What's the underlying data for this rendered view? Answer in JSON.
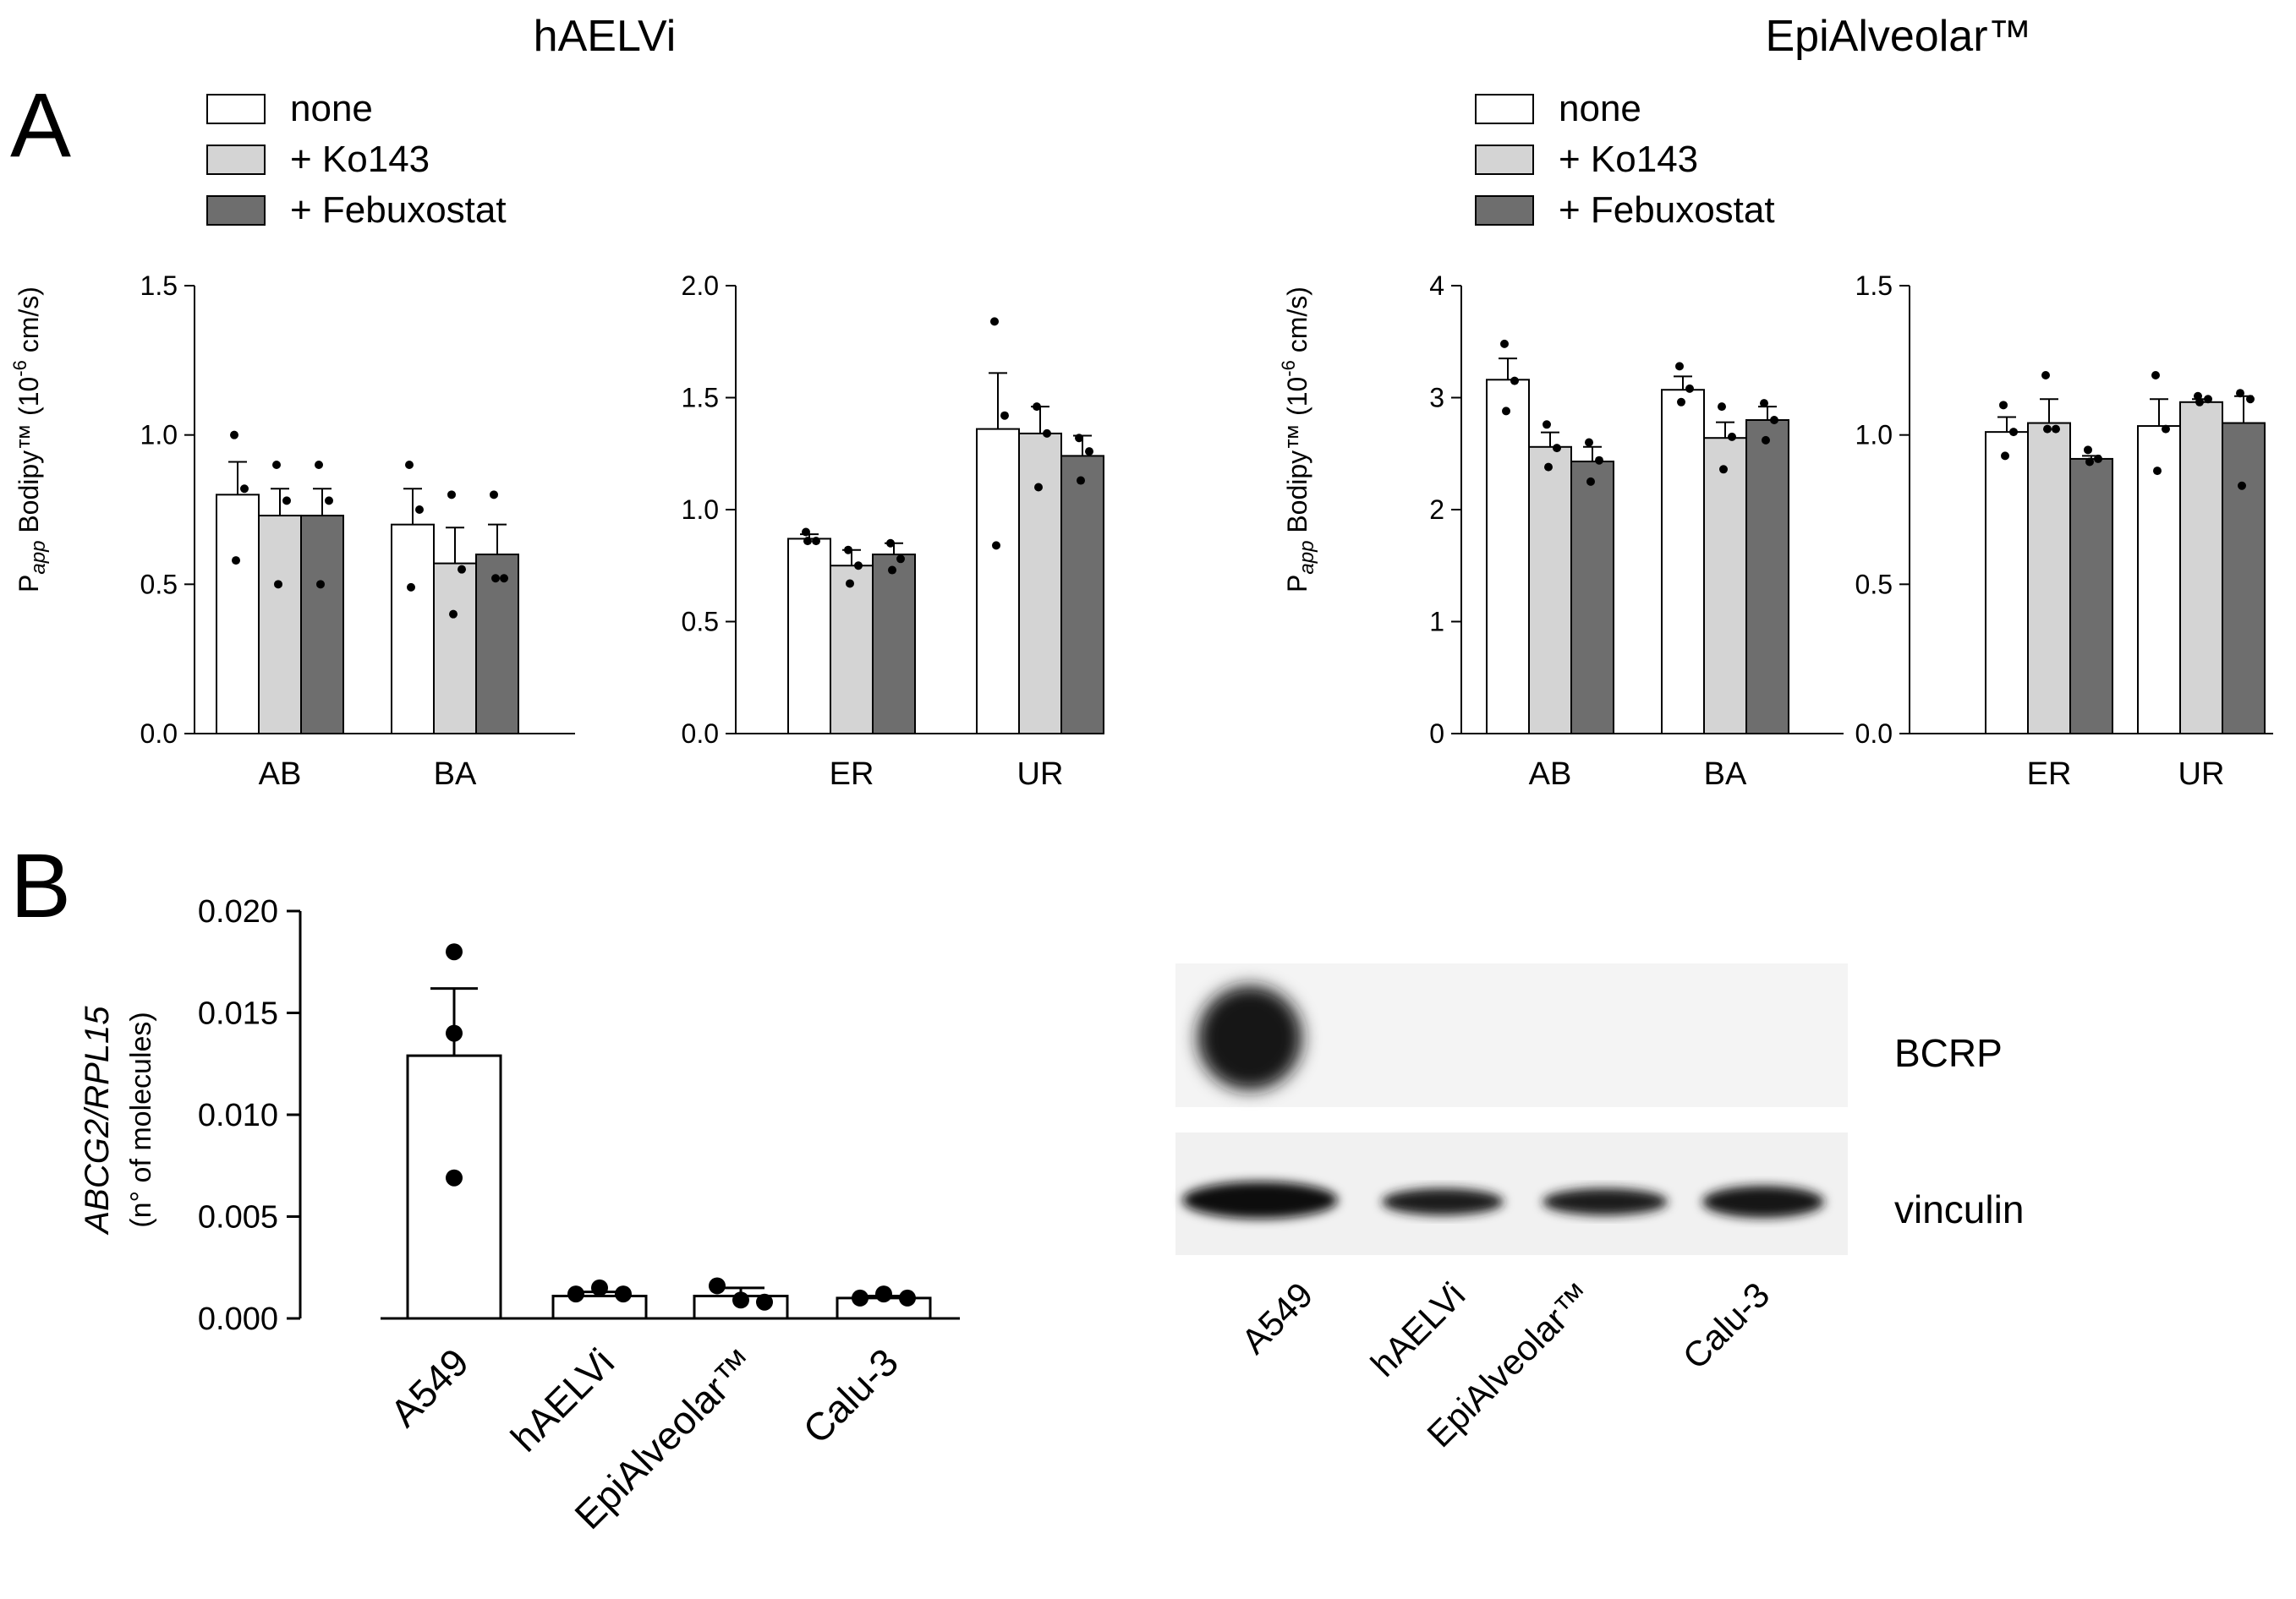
{
  "titles": {
    "left": "hAELVi",
    "right": "EpiAlveolar™"
  },
  "panel_labels": {
    "a": "A",
    "b": "B"
  },
  "legend": [
    {
      "label": "none",
      "color": "#ffffff"
    },
    {
      "label": "+ Ko143",
      "color": "#d4d4d4"
    },
    {
      "label": "+ Febuxostat",
      "color": "#6e6e6e"
    }
  ],
  "papp_label": {
    "main": "P",
    "sub": "app",
    "rest": " Bodipy™ ",
    "unit_a": "(10",
    "unit_exp": "-6",
    "unit_b": " cm/s)"
  },
  "ylabel_b": {
    "italic": "ABCG2/RPL15",
    "second": "(n° of molecules)"
  },
  "western_blot": {
    "bands": [
      "BCRP",
      "vinculin"
    ],
    "lanes": [
      "A549",
      "hAELVi",
      "EpiAlveolar™",
      "Calu-3"
    ]
  },
  "chart_data": [
    {
      "type": "bar",
      "panel": "A",
      "group_title": "hAELVi",
      "categories": [
        "AB",
        "BA"
      ],
      "ylim": [
        0,
        1.5
      ],
      "yticks": [
        "0.0",
        "0.5",
        "1.0",
        "1.5"
      ],
      "series": [
        {
          "name": "none",
          "values": [
            0.8,
            0.7
          ],
          "errors": [
            0.11,
            0.12
          ],
          "points": [
            [
              1.0,
              0.82,
              0.58
            ],
            [
              0.9,
              0.75,
              0.49
            ]
          ]
        },
        {
          "name": "+ Ko143",
          "values": [
            0.73,
            0.57
          ],
          "errors": [
            0.09,
            0.12
          ],
          "points": [
            [
              0.9,
              0.78,
              0.5
            ],
            [
              0.8,
              0.55,
              0.4
            ]
          ]
        },
        {
          "name": "+ Febuxostat",
          "values": [
            0.73,
            0.6
          ],
          "errors": [
            0.09,
            0.1
          ],
          "points": [
            [
              0.9,
              0.78,
              0.5
            ],
            [
              0.8,
              0.52,
              0.52
            ]
          ]
        }
      ]
    },
    {
      "type": "bar",
      "panel": "A",
      "group_title": "hAELVi",
      "categories": [
        "ER",
        "UR"
      ],
      "ylim": [
        0,
        2.0
      ],
      "yticks": [
        "0.0",
        "0.5",
        "1.0",
        "1.5",
        "2.0"
      ],
      "series": [
        {
          "name": "none",
          "values": [
            0.87,
            1.36
          ],
          "errors": [
            0.02,
            0.25
          ],
          "points": [
            [
              0.9,
              0.86,
              0.86
            ],
            [
              1.84,
              1.42,
              0.84
            ]
          ]
        },
        {
          "name": "+ Ko143",
          "values": [
            0.75,
            1.34
          ],
          "errors": [
            0.07,
            0.12
          ],
          "points": [
            [
              0.82,
              0.75,
              0.67
            ],
            [
              1.46,
              1.34,
              1.1
            ]
          ]
        },
        {
          "name": "+ Febuxostat",
          "values": [
            0.8,
            1.24
          ],
          "errors": [
            0.05,
            0.09
          ],
          "points": [
            [
              0.85,
              0.78,
              0.73
            ],
            [
              1.32,
              1.26,
              1.13
            ]
          ]
        }
      ]
    },
    {
      "type": "bar",
      "panel": "A",
      "group_title": "EpiAlveolar™",
      "categories": [
        "AB",
        "BA"
      ],
      "ylim": [
        0,
        4
      ],
      "yticks": [
        "0",
        "1",
        "2",
        "3",
        "4"
      ],
      "series": [
        {
          "name": "none",
          "values": [
            3.16,
            3.07
          ],
          "errors": [
            0.19,
            0.12
          ],
          "points": [
            [
              3.48,
              3.15,
              2.88
            ],
            [
              3.28,
              3.08,
              2.96
            ]
          ]
        },
        {
          "name": "+ Ko143",
          "values": [
            2.56,
            2.64
          ],
          "errors": [
            0.13,
            0.14
          ],
          "points": [
            [
              2.76,
              2.55,
              2.38
            ],
            [
              2.92,
              2.65,
              2.36
            ]
          ]
        },
        {
          "name": "+ Febuxostat",
          "values": [
            2.43,
            2.8
          ],
          "errors": [
            0.13,
            0.12
          ],
          "points": [
            [
              2.6,
              2.44,
              2.25
            ],
            [
              2.95,
              2.8,
              2.62
            ]
          ]
        }
      ]
    },
    {
      "type": "bar",
      "panel": "A",
      "group_title": "EpiAlveolar™",
      "categories": [
        "ER",
        "UR"
      ],
      "ylim": [
        0,
        1.5
      ],
      "yticks": [
        "0.0",
        "0.5",
        "1.0",
        "1.5"
      ],
      "series": [
        {
          "name": "none",
          "values": [
            1.01,
            1.03
          ],
          "errors": [
            0.05,
            0.09
          ],
          "points": [
            [
              1.1,
              1.01,
              0.93
            ],
            [
              1.2,
              1.02,
              0.88
            ]
          ]
        },
        {
          "name": "+ Ko143",
          "values": [
            1.04,
            1.11
          ],
          "errors": [
            0.08,
            0.01
          ],
          "points": [
            [
              1.2,
              1.02,
              1.02
            ],
            [
              1.13,
              1.12,
              1.11
            ]
          ]
        },
        {
          "name": "+ Febuxostat",
          "values": [
            0.92,
            1.04
          ],
          "errors": [
            0.01,
            0.09
          ],
          "points": [
            [
              0.95,
              0.92,
              0.91
            ],
            [
              1.14,
              1.12,
              0.83
            ]
          ]
        }
      ]
    },
    {
      "type": "bar",
      "panel": "B",
      "categories": [
        "A549",
        "hAELVi",
        "EpiAlveolar™",
        "Calu-3"
      ],
      "ylim": [
        0,
        0.02
      ],
      "yticks": [
        "0.000",
        "0.005",
        "0.010",
        "0.015",
        "0.020"
      ],
      "values": [
        0.0129,
        0.0011,
        0.0011,
        0.001
      ],
      "errors": [
        0.0033,
        0.0002,
        0.0004,
        0.0001
      ],
      "points": [
        [
          0.018,
          0.014,
          0.0069
        ],
        [
          0.0012,
          0.0015,
          0.0012
        ],
        [
          0.0016,
          0.0009,
          0.0008
        ],
        [
          0.001,
          0.0012,
          0.001
        ]
      ]
    }
  ]
}
